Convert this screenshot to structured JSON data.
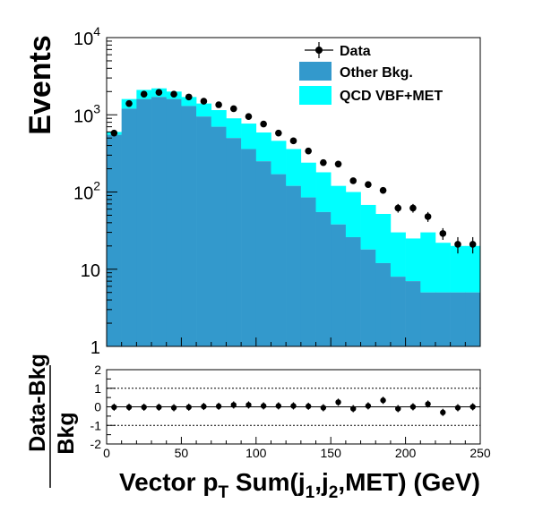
{
  "chart_data": [
    {
      "type": "histogram-stacked",
      "ylabel": "Events",
      "yscale": "log",
      "ylim": [
        1,
        10000
      ],
      "xlim": [
        0,
        250
      ],
      "ytick_labels": [
        {
          "value": 1,
          "base": "1",
          "exp": ""
        },
        {
          "value": 10,
          "base": "10",
          "exp": ""
        },
        {
          "value": 100,
          "base": "10",
          "exp": "2"
        },
        {
          "value": 1000,
          "base": "10",
          "exp": "3"
        },
        {
          "value": 10000,
          "base": "10",
          "exp": "4"
        }
      ],
      "legend": {
        "position": "top-right",
        "data_label": "Data",
        "entries": [
          {
            "name": "Other Bkg.",
            "color": "#3399cc"
          },
          {
            "name": "QCD VBF+MET",
            "color": "#00ffff"
          }
        ]
      },
      "bin_edges": [
        0,
        10,
        20,
        30,
        40,
        50,
        60,
        70,
        80,
        90,
        100,
        110,
        120,
        130,
        140,
        150,
        160,
        170,
        180,
        190,
        200,
        210,
        220,
        230,
        240,
        250
      ],
      "series": [
        {
          "name": "Other Bkg.",
          "color": "#3399cc",
          "values": [
            550,
            1200,
            1600,
            1700,
            1600,
            1300,
            950,
            700,
            500,
            360,
            250,
            170,
            120,
            85,
            55,
            38,
            26,
            18,
            12,
            8,
            7,
            5,
            5,
            5,
            5
          ]
        },
        {
          "name": "QCD VBF+MET",
          "color": "#00ffff",
          "values": [
            50,
            400,
            500,
            500,
            400,
            400,
            450,
            450,
            400,
            410,
            340,
            290,
            240,
            155,
            125,
            82,
            74,
            50,
            40,
            22,
            18,
            25,
            17,
            15,
            15
          ]
        }
      ],
      "data": {
        "name": "Data",
        "x": [
          5,
          15,
          25,
          35,
          45,
          55,
          65,
          75,
          85,
          95,
          105,
          115,
          125,
          135,
          145,
          155,
          165,
          175,
          185,
          195,
          205,
          215,
          225,
          235,
          245
        ],
        "y": [
          580,
          1400,
          1850,
          1950,
          1850,
          1700,
          1500,
          1350,
          1200,
          950,
          760,
          580,
          460,
          340,
          240,
          230,
          140,
          125,
          105,
          62,
          62,
          48,
          29,
          21,
          21
        ],
        "yerr": [
          24,
          37,
          43,
          44,
          43,
          41,
          39,
          37,
          35,
          31,
          28,
          24,
          21,
          18,
          15,
          15,
          12,
          11,
          10,
          8,
          8,
          7,
          5,
          5,
          5
        ]
      }
    },
    {
      "type": "scatter-errorbar",
      "ylabel_num": "Data-Bkg",
      "ylabel_den": "Bkg",
      "xlabel": "Vector p_T Sum(j_1,j_2,MET) (GeV)",
      "xlabel_parts": {
        "pre": "Vector p",
        "sub1": "T",
        "mid": " Sum(j",
        "sub2": "1",
        "comma": ",j",
        "sub3": "2",
        "post": ",MET) (GeV)"
      },
      "xlim": [
        0,
        250
      ],
      "ylim": [
        -2,
        2
      ],
      "xtick_labels": [
        "0",
        "50",
        "100",
        "150",
        "200",
        "250"
      ],
      "ytick_labels": [
        "-2",
        "-1",
        "0",
        "1",
        "2"
      ],
      "grid_lines_y": [
        -1,
        1
      ],
      "x": [
        5,
        15,
        25,
        35,
        45,
        55,
        65,
        75,
        85,
        95,
        105,
        115,
        125,
        135,
        145,
        155,
        165,
        175,
        185,
        195,
        205,
        215,
        225,
        235,
        245
      ],
      "y": [
        -0.02,
        -0.02,
        -0.02,
        -0.02,
        -0.05,
        -0.02,
        0.02,
        0.03,
        0.1,
        0.1,
        0.05,
        0.05,
        0.05,
        0.03,
        -0.05,
        0.25,
        -0.1,
        0.05,
        0.35,
        -0.1,
        0.0,
        0.15,
        -0.3,
        -0.05,
        0.0
      ]
    }
  ]
}
